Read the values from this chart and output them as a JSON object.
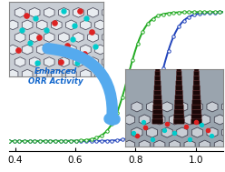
{
  "title": "",
  "xlabel": "",
  "ylabel": "",
  "xlim": [
    0.38,
    1.09
  ],
  "ylim": [
    -0.08,
    1.08
  ],
  "xticks": [
    0.4,
    0.6,
    0.8,
    1.0
  ],
  "xtick_labels": [
    "0.4",
    "0.6",
    "0.8",
    "1.0"
  ],
  "blue_color": "#2244bb",
  "green_color": "#22aa22",
  "blue_midpoint": 0.885,
  "green_midpoint": 0.775,
  "blue_steepness": 35,
  "green_steepness": 35,
  "arrow_color": "#55aaee",
  "arrow_text": "Enhanced\nORR Activity",
  "arrow_text_color": "#1166cc",
  "bg_color": "#ffffff",
  "inset1_bg": "#c8cdd4",
  "inset2_bg": "#9aa4ae",
  "hex_edge": "#555566",
  "hex_fill": "#dde0e8",
  "figsize": [
    2.48,
    1.89
  ],
  "dpi": 100
}
